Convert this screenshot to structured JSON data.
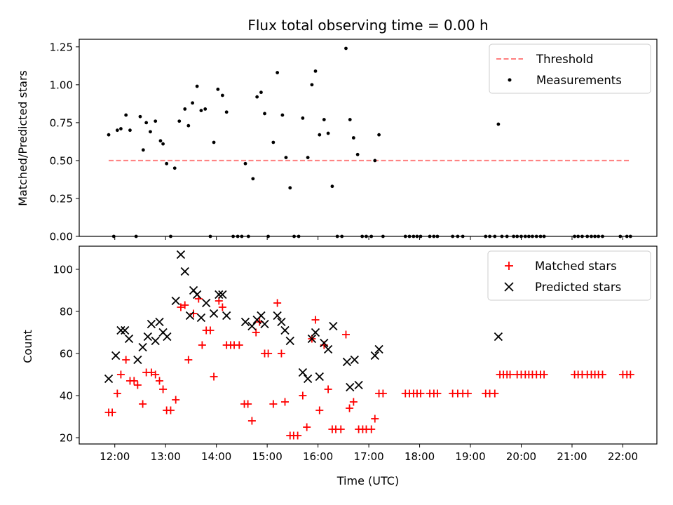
{
  "chart_data": [
    {
      "type": "scatter",
      "title": "Flux total observing time = 0.00 h",
      "ylabel": "Matched/Predicted stars",
      "ylim": [
        0,
        1.3
      ],
      "yticks": [
        "0.00",
        "0.25",
        "0.50",
        "0.75",
        "1.00",
        "1.25"
      ],
      "yticks_values": [
        0,
        0.25,
        0.5,
        0.75,
        1.0,
        1.25
      ],
      "xlim": [
        11.3,
        22.67
      ],
      "legend_position": "top-right",
      "threshold": {
        "name": "Threshold",
        "value": 0.5,
        "x": [
          11.88,
          22.15
        ],
        "color": "#ff7f7f",
        "style": "dashed"
      },
      "series": [
        {
          "name": "Measurements",
          "color": "#000000",
          "points": [
            [
              11.88,
              0.67
            ],
            [
              11.98,
              0.0
            ],
            [
              12.05,
              0.7
            ],
            [
              12.12,
              0.71
            ],
            [
              12.22,
              0.8
            ],
            [
              12.3,
              0.7
            ],
            [
              12.42,
              0.0
            ],
            [
              12.5,
              0.79
            ],
            [
              12.56,
              0.57
            ],
            [
              12.62,
              0.75
            ],
            [
              12.7,
              0.69
            ],
            [
              12.8,
              0.76
            ],
            [
              12.9,
              0.63
            ],
            [
              12.95,
              0.61
            ],
            [
              13.02,
              0.48
            ],
            [
              13.1,
              0.0
            ],
            [
              13.18,
              0.45
            ],
            [
              13.27,
              0.76
            ],
            [
              13.38,
              0.84
            ],
            [
              13.45,
              0.73
            ],
            [
              13.53,
              0.88
            ],
            [
              13.62,
              0.99
            ],
            [
              13.7,
              0.83
            ],
            [
              13.78,
              0.84
            ],
            [
              13.88,
              0.0
            ],
            [
              13.95,
              0.62
            ],
            [
              14.03,
              0.97
            ],
            [
              14.12,
              0.93
            ],
            [
              14.2,
              0.82
            ],
            [
              14.33,
              0.0
            ],
            [
              14.42,
              0.0
            ],
            [
              14.5,
              0.0
            ],
            [
              14.57,
              0.48
            ],
            [
              14.63,
              0.0
            ],
            [
              14.72,
              0.38
            ],
            [
              14.8,
              0.92
            ],
            [
              14.88,
              0.95
            ],
            [
              14.95,
              0.81
            ],
            [
              15.02,
              0.0
            ],
            [
              15.12,
              0.62
            ],
            [
              15.2,
              1.08
            ],
            [
              15.3,
              0.8
            ],
            [
              15.37,
              0.52
            ],
            [
              15.45,
              0.32
            ],
            [
              15.53,
              0.0
            ],
            [
              15.62,
              0.0
            ],
            [
              15.7,
              0.78
            ],
            [
              15.8,
              0.52
            ],
            [
              15.88,
              1.0
            ],
            [
              15.95,
              1.09
            ],
            [
              16.03,
              0.67
            ],
            [
              16.12,
              0.77
            ],
            [
              16.2,
              0.68
            ],
            [
              16.28,
              0.33
            ],
            [
              16.38,
              0.0
            ],
            [
              16.47,
              0.0
            ],
            [
              16.55,
              1.24
            ],
            [
              16.63,
              0.77
            ],
            [
              16.7,
              0.65
            ],
            [
              16.78,
              0.54
            ],
            [
              16.87,
              0.0
            ],
            [
              16.95,
              0.0
            ],
            [
              17.05,
              0.0
            ],
            [
              17.12,
              0.5
            ],
            [
              17.2,
              0.67
            ],
            [
              17.28,
              0.0
            ],
            [
              17.72,
              0.0
            ],
            [
              17.8,
              0.0
            ],
            [
              17.88,
              0.0
            ],
            [
              17.95,
              0.0
            ],
            [
              18.02,
              0.0
            ],
            [
              18.2,
              0.0
            ],
            [
              18.28,
              0.0
            ],
            [
              18.35,
              0.0
            ],
            [
              18.65,
              0.0
            ],
            [
              18.75,
              0.0
            ],
            [
              18.85,
              0.0
            ],
            [
              19.3,
              0.0
            ],
            [
              19.38,
              0.0
            ],
            [
              19.48,
              0.0
            ],
            [
              19.55,
              0.74
            ],
            [
              19.62,
              0.0
            ],
            [
              19.72,
              0.0
            ],
            [
              19.85,
              0.0
            ],
            [
              19.92,
              0.0
            ],
            [
              20.0,
              0.0
            ],
            [
              20.08,
              0.0
            ],
            [
              20.15,
              0.0
            ],
            [
              20.22,
              0.0
            ],
            [
              20.3,
              0.0
            ],
            [
              20.38,
              0.0
            ],
            [
              20.45,
              0.0
            ],
            [
              21.05,
              0.0
            ],
            [
              21.12,
              0.0
            ],
            [
              21.2,
              0.0
            ],
            [
              21.3,
              0.0
            ],
            [
              21.38,
              0.0
            ],
            [
              21.45,
              0.0
            ],
            [
              21.52,
              0.0
            ],
            [
              21.6,
              0.0
            ],
            [
              21.95,
              0.0
            ],
            [
              22.08,
              0.0
            ],
            [
              22.15,
              0.0
            ]
          ]
        }
      ]
    },
    {
      "type": "scatter",
      "xlabel": "Time (UTC)",
      "ylabel": "Count",
      "ylim": [
        17,
        111
      ],
      "yticks": [
        "20",
        "40",
        "60",
        "80",
        "100"
      ],
      "yticks_values": [
        20,
        40,
        60,
        80,
        100
      ],
      "xlim": [
        11.3,
        22.67
      ],
      "xticks": [
        "12:00",
        "13:00",
        "14:00",
        "15:00",
        "16:00",
        "17:00",
        "18:00",
        "19:00",
        "20:00",
        "21:00",
        "22:00"
      ],
      "xticks_values": [
        12,
        13,
        14,
        15,
        16,
        17,
        18,
        19,
        20,
        21,
        22
      ],
      "legend_position": "top-right",
      "series": [
        {
          "name": "Matched stars",
          "marker": "plus",
          "color": "#ff0000",
          "points": [
            [
              11.88,
              32
            ],
            [
              11.95,
              32
            ],
            [
              12.05,
              41
            ],
            [
              12.12,
              50
            ],
            [
              12.22,
              57
            ],
            [
              12.3,
              47
            ],
            [
              12.38,
              47
            ],
            [
              12.45,
              45
            ],
            [
              12.55,
              36
            ],
            [
              12.62,
              51
            ],
            [
              12.72,
              51
            ],
            [
              12.8,
              50
            ],
            [
              12.88,
              47
            ],
            [
              12.95,
              43
            ],
            [
              13.02,
              33
            ],
            [
              13.1,
              33
            ],
            [
              13.2,
              38
            ],
            [
              13.3,
              82
            ],
            [
              13.38,
              83
            ],
            [
              13.45,
              57
            ],
            [
              13.55,
              79
            ],
            [
              13.65,
              86
            ],
            [
              13.72,
              64
            ],
            [
              13.8,
              71
            ],
            [
              13.88,
              71
            ],
            [
              13.95,
              49
            ],
            [
              14.05,
              85
            ],
            [
              14.12,
              82
            ],
            [
              14.2,
              64
            ],
            [
              14.28,
              64
            ],
            [
              14.35,
              64
            ],
            [
              14.45,
              64
            ],
            [
              14.55,
              36
            ],
            [
              14.62,
              36
            ],
            [
              14.7,
              28
            ],
            [
              14.78,
              70
            ],
            [
              14.85,
              75
            ],
            [
              14.95,
              60
            ],
            [
              15.02,
              60
            ],
            [
              15.12,
              36
            ],
            [
              15.2,
              84
            ],
            [
              15.28,
              60
            ],
            [
              15.35,
              37
            ],
            [
              15.45,
              21
            ],
            [
              15.52,
              21
            ],
            [
              15.6,
              21
            ],
            [
              15.7,
              40
            ],
            [
              15.78,
              25
            ],
            [
              15.88,
              67
            ],
            [
              15.95,
              76
            ],
            [
              16.03,
              33
            ],
            [
              16.12,
              64
            ],
            [
              16.2,
              43
            ],
            [
              16.28,
              24
            ],
            [
              16.35,
              24
            ],
            [
              16.45,
              24
            ],
            [
              16.55,
              69
            ],
            [
              16.62,
              34
            ],
            [
              16.7,
              37
            ],
            [
              16.8,
              24
            ],
            [
              16.88,
              24
            ],
            [
              16.95,
              24
            ],
            [
              17.05,
              24
            ],
            [
              17.12,
              29
            ],
            [
              17.2,
              41
            ],
            [
              17.28,
              41
            ],
            [
              17.72,
              41
            ],
            [
              17.8,
              41
            ],
            [
              17.88,
              41
            ],
            [
              17.95,
              41
            ],
            [
              18.02,
              41
            ],
            [
              18.2,
              41
            ],
            [
              18.28,
              41
            ],
            [
              18.35,
              41
            ],
            [
              18.65,
              41
            ],
            [
              18.75,
              41
            ],
            [
              18.85,
              41
            ],
            [
              18.95,
              41
            ],
            [
              19.3,
              41
            ],
            [
              19.38,
              41
            ],
            [
              19.48,
              41
            ],
            [
              19.58,
              50
            ],
            [
              19.65,
              50
            ],
            [
              19.72,
              50
            ],
            [
              19.78,
              50
            ],
            [
              19.92,
              50
            ],
            [
              20.0,
              50
            ],
            [
              20.08,
              50
            ],
            [
              20.15,
              50
            ],
            [
              20.22,
              50
            ],
            [
              20.3,
              50
            ],
            [
              20.38,
              50
            ],
            [
              20.45,
              50
            ],
            [
              21.05,
              50
            ],
            [
              21.12,
              50
            ],
            [
              21.2,
              50
            ],
            [
              21.3,
              50
            ],
            [
              21.38,
              50
            ],
            [
              21.45,
              50
            ],
            [
              21.52,
              50
            ],
            [
              21.6,
              50
            ],
            [
              22.0,
              50
            ],
            [
              22.08,
              50
            ],
            [
              22.15,
              50
            ]
          ]
        },
        {
          "name": "Predicted stars",
          "marker": "x",
          "color": "#000000",
          "points": [
            [
              11.88,
              48
            ],
            [
              12.02,
              59
            ],
            [
              12.12,
              71
            ],
            [
              12.2,
              71
            ],
            [
              12.28,
              67
            ],
            [
              12.45,
              57
            ],
            [
              12.55,
              63
            ],
            [
              12.65,
              68
            ],
            [
              12.72,
              74
            ],
            [
              12.8,
              66
            ],
            [
              12.88,
              75
            ],
            [
              12.95,
              70
            ],
            [
              13.03,
              68
            ],
            [
              13.2,
              85
            ],
            [
              13.3,
              107
            ],
            [
              13.38,
              99
            ],
            [
              13.48,
              78
            ],
            [
              13.55,
              90
            ],
            [
              13.62,
              88
            ],
            [
              13.7,
              77
            ],
            [
              13.8,
              84
            ],
            [
              13.95,
              79
            ],
            [
              14.05,
              88
            ],
            [
              14.12,
              88
            ],
            [
              14.2,
              78
            ],
            [
              14.57,
              75
            ],
            [
              14.7,
              73
            ],
            [
              14.8,
              76
            ],
            [
              14.88,
              78
            ],
            [
              14.95,
              74
            ],
            [
              15.2,
              78
            ],
            [
              15.28,
              75
            ],
            [
              15.35,
              71
            ],
            [
              15.45,
              66
            ],
            [
              15.7,
              51
            ],
            [
              15.8,
              48
            ],
            [
              15.88,
              67
            ],
            [
              15.95,
              70
            ],
            [
              16.03,
              49
            ],
            [
              16.12,
              65
            ],
            [
              16.2,
              62
            ],
            [
              16.3,
              73
            ],
            [
              16.57,
              56
            ],
            [
              16.63,
              44
            ],
            [
              16.72,
              57
            ],
            [
              16.8,
              45
            ],
            [
              17.12,
              59
            ],
            [
              17.2,
              62
            ],
            [
              19.55,
              68
            ]
          ]
        }
      ]
    }
  ]
}
